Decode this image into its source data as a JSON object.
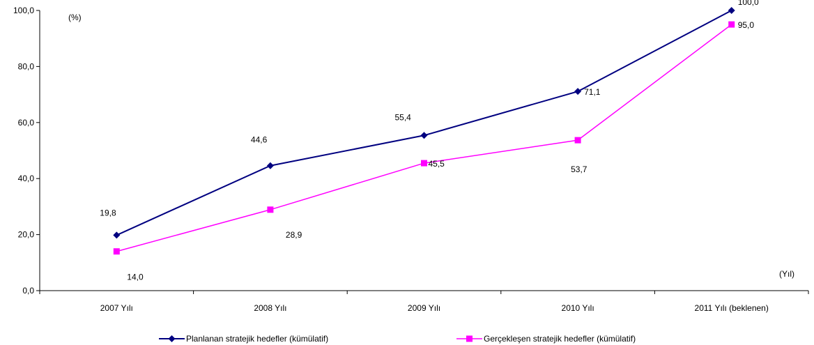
{
  "chart_data": {
    "type": "line",
    "ylabel": "(%)",
    "xlabel": "(Yıl)",
    "ylim": [
      0,
      100
    ],
    "yticks": [
      "0,0",
      "20,0",
      "40,0",
      "60,0",
      "80,0",
      "100,0"
    ],
    "categories": [
      "2007 Yılı",
      "2008 Yılı",
      "2009 Yılı",
      "2010 Yılı",
      "2011 Yılı (beklenen)"
    ],
    "series": [
      {
        "name": "Planlanan stratejik hedefler (kümülatif)",
        "color": "#000080",
        "marker": "diamond",
        "values": [
          19.8,
          44.6,
          55.4,
          71.1,
          100.0
        ],
        "labels": [
          "19,8",
          "44,6",
          "55,4",
          "71,1",
          "100,0"
        ]
      },
      {
        "name": "Gerçekleşen stratejik hedefler (kümülatif)",
        "color": "#ff00ff",
        "marker": "square",
        "values": [
          14.0,
          28.9,
          45.5,
          53.7,
          95.0
        ],
        "labels": [
          "14,0",
          "28,9",
          "45,5",
          "53,7",
          "95,0"
        ]
      }
    ],
    "grid": false,
    "legend_position": "bottom"
  }
}
